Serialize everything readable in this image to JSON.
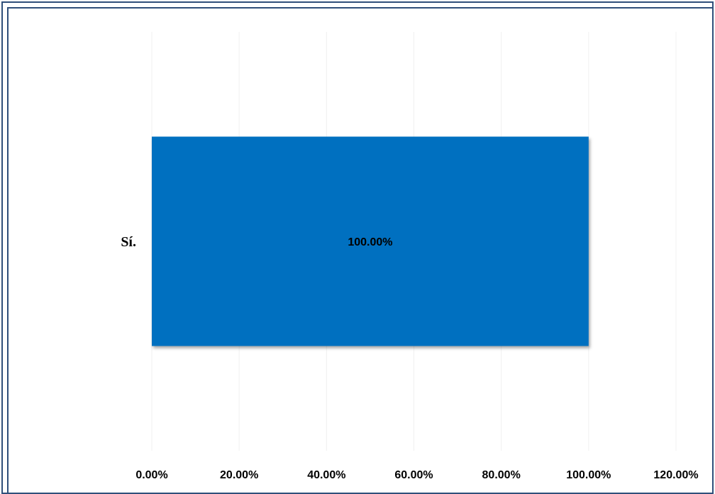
{
  "chart_data": {
    "type": "bar",
    "orientation": "horizontal",
    "categories": [
      "Sí."
    ],
    "values": [
      100
    ],
    "data_labels": [
      "100.00%"
    ],
    "xlim": [
      0,
      120
    ],
    "x_ticks": [
      0,
      20,
      40,
      60,
      80,
      100,
      120
    ],
    "x_tick_labels": [
      "0.00%",
      "20.00%",
      "40.00%",
      "60.00%",
      "80.00%",
      "100.00%",
      "120.00%"
    ],
    "title": "",
    "xlabel": "",
    "ylabel": "",
    "grid": true,
    "legend": "none",
    "bar_color": "#0070C0",
    "grid_color": "#f0f0f0",
    "frame_color": "#2f4f7a"
  }
}
